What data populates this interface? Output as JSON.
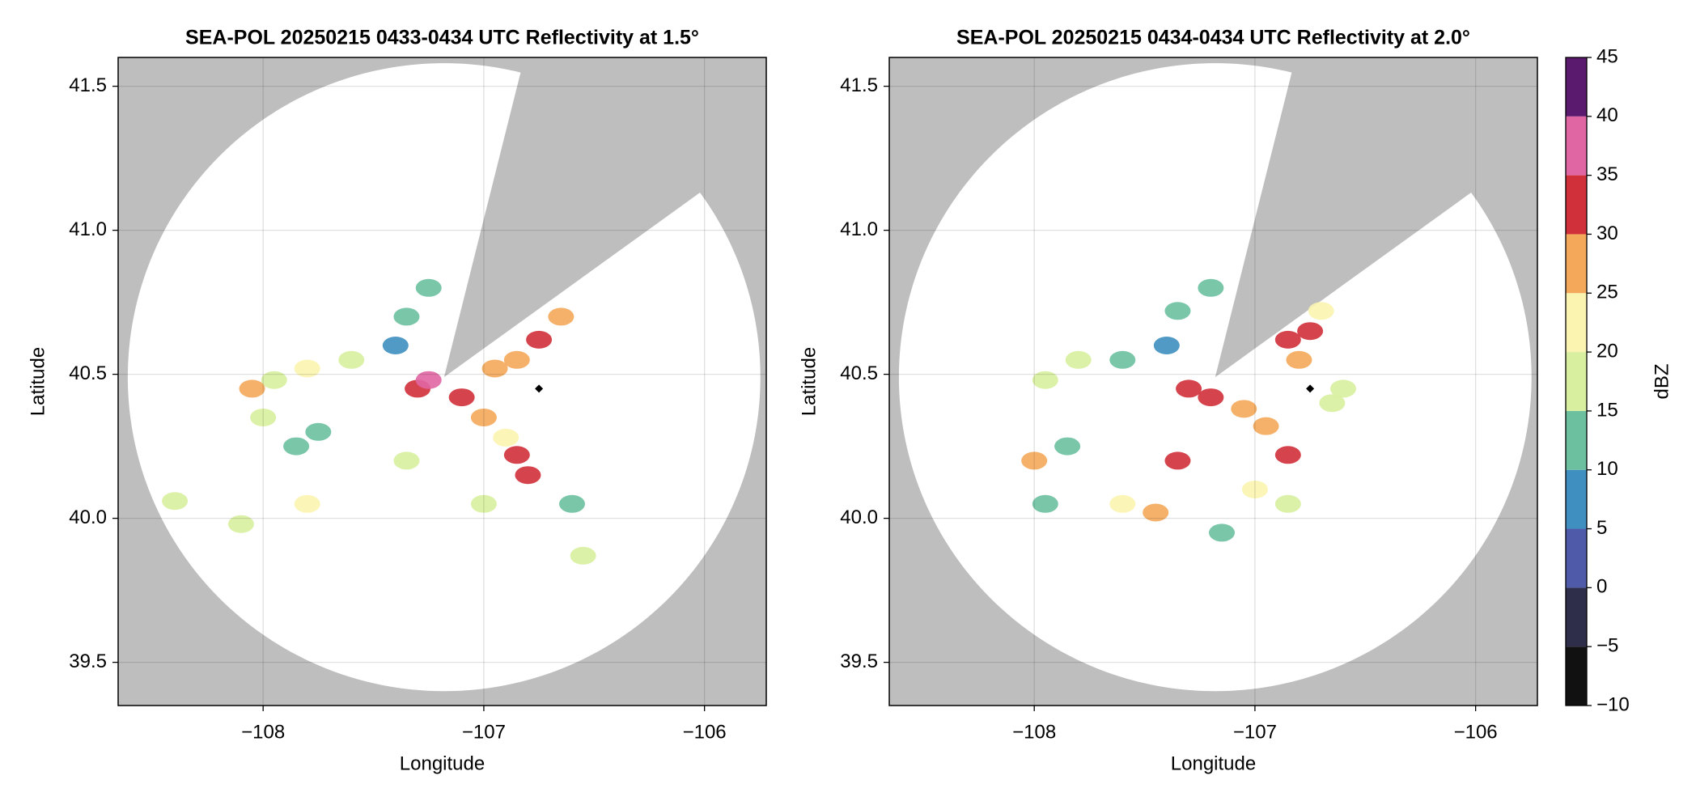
{
  "chart_data": [
    {
      "type": "radar-ppi",
      "title": "SEA-POL 20250215 0433-0434 UTC Reflectivity at 1.5°",
      "xlabel": "Longitude",
      "ylabel": "Latitude",
      "xlim": [
        -108.657,
        -105.72
      ],
      "ylim": [
        39.35,
        41.6
      ],
      "xticks": [
        {
          "value": -108,
          "label": "−108"
        },
        {
          "value": -107,
          "label": "−107"
        },
        {
          "value": -106,
          "label": "−106"
        }
      ],
      "yticks": [
        39.5,
        40.0,
        40.5,
        41.0,
        41.5
      ],
      "yticks_labels": [
        "39.5",
        "40.0",
        "40.5",
        "41.0",
        "41.5"
      ],
      "grid": true,
      "radar_site": [
        -107.18,
        40.49
      ],
      "max_range_km": 121,
      "blocked_sector": [
        14,
        54
      ],
      "marker": [
        -106.75,
        40.45
      ],
      "x": [
        -107.3,
        -107.25,
        -107.1,
        -107.0,
        -106.9,
        -106.85,
        -106.8,
        -106.85,
        -106.75,
        -106.65,
        -106.95,
        -107.4,
        -107.35,
        -107.25,
        -107.6,
        -107.8,
        -107.95,
        -108.05,
        -107.85,
        -108.0,
        -107.75,
        -107.35,
        -107.0,
        -107.8,
        -108.4,
        -106.6,
        -106.55,
        -108.1
      ],
      "y": [
        40.45,
        40.48,
        40.42,
        40.35,
        40.28,
        40.22,
        40.15,
        40.55,
        40.62,
        40.7,
        40.52,
        40.6,
        40.7,
        40.8,
        40.55,
        40.52,
        40.48,
        40.45,
        40.25,
        40.35,
        40.3,
        40.2,
        40.05,
        40.05,
        40.06,
        40.05,
        39.87,
        39.98
      ],
      "values": [
        30,
        35,
        30,
        25,
        20,
        30,
        32,
        28,
        30,
        25,
        25,
        5,
        10,
        12,
        15,
        20,
        18,
        28,
        12,
        15,
        10,
        15,
        15,
        20,
        17,
        12,
        18,
        18
      ]
    },
    {
      "type": "radar-ppi",
      "title": "SEA-POL 20250215 0434-0434 UTC Reflectivity at 2.0°",
      "xlabel": "Longitude",
      "ylabel": "Latitude",
      "xlim": [
        -108.657,
        -105.72
      ],
      "ylim": [
        39.35,
        41.6
      ],
      "xticks": [
        {
          "value": -108,
          "label": "−108"
        },
        {
          "value": -107,
          "label": "−107"
        },
        {
          "value": -106,
          "label": "−106"
        }
      ],
      "yticks": [
        39.5,
        40.0,
        40.5,
        41.0,
        41.5
      ],
      "yticks_labels": [
        "39.5",
        "40.0",
        "40.5",
        "41.0",
        "41.5"
      ],
      "grid": true,
      "radar_site": [
        -107.18,
        40.49
      ],
      "max_range_km": 121,
      "blocked_sector": [
        14,
        54
      ],
      "marker": [
        -106.75,
        40.45
      ],
      "x": [
        -107.3,
        -107.2,
        -107.05,
        -106.95,
        -106.85,
        -106.8,
        -106.85,
        -106.75,
        -106.7,
        -106.65,
        -107.4,
        -107.35,
        -107.2,
        -107.6,
        -107.8,
        -107.95,
        -107.85,
        -108.0,
        -107.35,
        -107.0,
        -106.85,
        -107.15,
        -107.45,
        -107.6,
        -106.6,
        -107.95
      ],
      "y": [
        40.45,
        40.42,
        40.38,
        40.32,
        40.22,
        40.55,
        40.62,
        40.65,
        40.72,
        40.4,
        40.6,
        40.72,
        40.8,
        40.55,
        40.55,
        40.48,
        40.25,
        40.2,
        40.2,
        40.1,
        40.05,
        39.95,
        40.02,
        40.05,
        40.45,
        40.05
      ],
      "values": [
        30,
        32,
        28,
        25,
        32,
        28,
        30,
        30,
        22,
        15,
        5,
        10,
        12,
        12,
        18,
        17,
        12,
        25,
        30,
        20,
        15,
        12,
        25,
        20,
        15,
        12
      ]
    },
    {
      "type": "colorbar",
      "label": "dBZ",
      "ylim": [
        -10,
        45
      ],
      "yticks": [
        {
          "value": -10,
          "label": "−10"
        },
        {
          "value": -5,
          "label": "−5"
        },
        0,
        5,
        10,
        15,
        20,
        25,
        30,
        35,
        40,
        45
      ],
      "levels": [
        -10,
        -5,
        0,
        5,
        10,
        15,
        20,
        25,
        30,
        35,
        40,
        45
      ],
      "colors": [
        "#111111",
        "#2e2d4a",
        "#4f5aa8",
        "#3f8fc0",
        "#6cc0a0",
        "#d8ef9f",
        "#fbf4b0",
        "#f4a85a",
        "#d0303a",
        "#e066a3",
        "#5a1a6e"
      ]
    }
  ]
}
